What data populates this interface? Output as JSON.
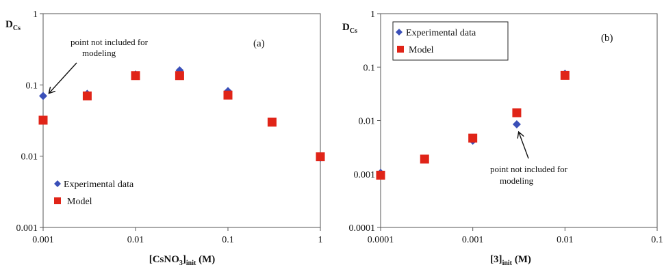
{
  "chart_data": [
    {
      "type": "scatter",
      "panel_label": "(a)",
      "ylabel_main": "D",
      "ylabel_sub": "Cs",
      "xlabel_main": "[CsNO",
      "xlabel_sub1": "3",
      "xlabel_mid": "]",
      "xlabel_sub2": "init",
      "xlabel_end": " (M)",
      "x_scale": "log",
      "y_scale": "log",
      "xlim": [
        0.001,
        1
      ],
      "ylim": [
        0.001,
        1
      ],
      "x_tick_labels": [
        "0.001",
        "0.01",
        "0.1",
        "1"
      ],
      "y_tick_labels": [
        "0.001",
        "0.01",
        "0.1",
        "1"
      ],
      "grid": false,
      "legend_position": "bottom-left",
      "series": [
        {
          "name": "Experimental data",
          "marker": "diamond",
          "color": "#3a4fb8",
          "x": [
            0.001,
            0.003,
            0.01,
            0.03,
            0.1,
            0.3,
            1
          ],
          "y": [
            0.07,
            0.075,
            0.14,
            0.16,
            0.082,
            0.03,
            0.0095
          ]
        },
        {
          "name": "Model",
          "marker": "square",
          "color": "#e02418",
          "x": [
            0.001,
            0.003,
            0.01,
            0.03,
            0.1,
            0.3,
            1
          ],
          "y": [
            0.032,
            0.07,
            0.135,
            0.135,
            0.072,
            0.03,
            0.0098
          ]
        }
      ],
      "annotation": {
        "lines": [
          "point not included for",
          "modeling"
        ]
      }
    },
    {
      "type": "scatter",
      "panel_label": "(b)",
      "ylabel_main": "D",
      "ylabel_sub": "Cs",
      "xlabel_main": "[3]",
      "xlabel_sub1": "init",
      "xlabel_end": " (M)",
      "x_scale": "log",
      "y_scale": "log",
      "xlim": [
        0.0001,
        0.1
      ],
      "ylim": [
        0.0001,
        1
      ],
      "x_tick_labels": [
        "0.0001",
        "0.001",
        "0.01",
        "0.1"
      ],
      "y_tick_labels": [
        "0.0001",
        "0.001",
        "0.01",
        "0.1",
        "1"
      ],
      "grid": false,
      "legend_position": "top-left",
      "series": [
        {
          "name": "Experimental data",
          "marker": "diamond",
          "color": "#3a4fb8",
          "x": [
            0.0001,
            0.0003,
            0.001,
            0.003,
            0.01
          ],
          "y": [
            0.00105,
            0.0019,
            0.0042,
            0.0085,
            0.075
          ]
        },
        {
          "name": "Model",
          "marker": "square",
          "color": "#e02418",
          "x": [
            0.0001,
            0.0003,
            0.001,
            0.003,
            0.01
          ],
          "y": [
            0.00095,
            0.0019,
            0.0047,
            0.014,
            0.07
          ]
        }
      ],
      "annotation": {
        "lines": [
          "point not included for",
          "modeling"
        ]
      }
    }
  ]
}
